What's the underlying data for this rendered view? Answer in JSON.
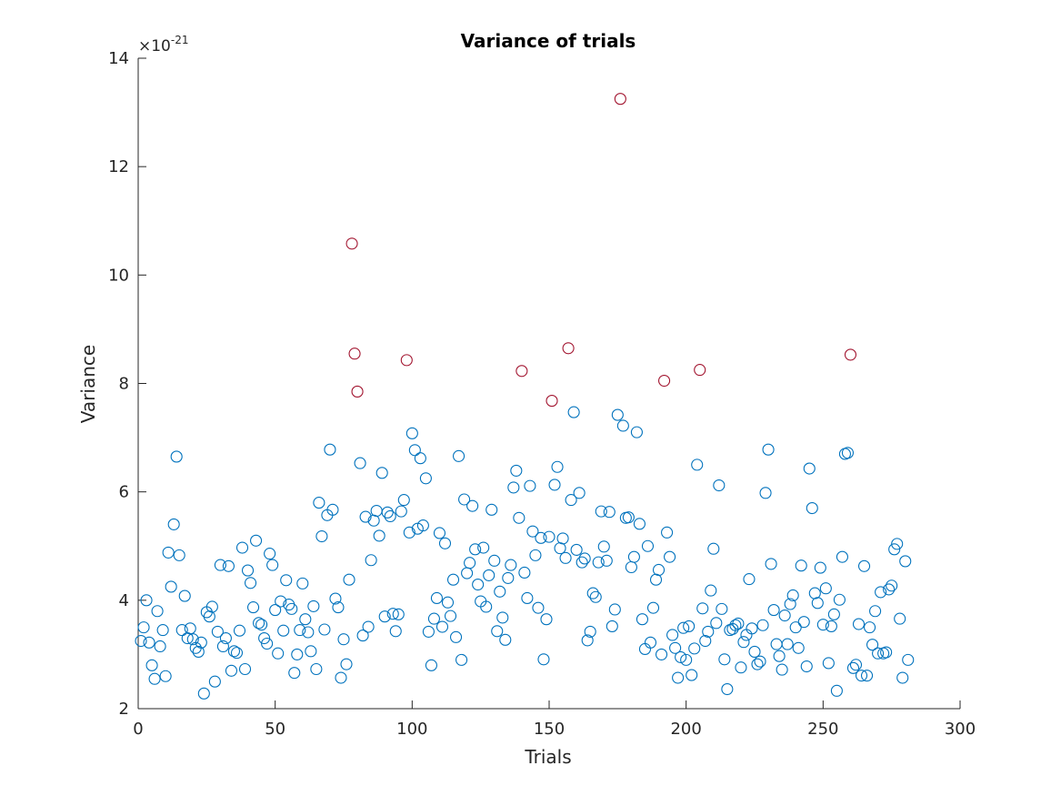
{
  "chart_data": {
    "type": "scatter",
    "title": "Variance of trials",
    "xlabel": "Trials",
    "ylabel": "Variance",
    "exponent_label": "×10",
    "exponent": "-21",
    "xlim": [
      0,
      300
    ],
    "ylim": [
      2,
      14
    ],
    "xticks": [
      0,
      50,
      100,
      150,
      200,
      250,
      300
    ],
    "yticks": [
      2,
      4,
      6,
      8,
      10,
      12,
      14
    ],
    "grid": false,
    "legend": "none",
    "series": [
      {
        "color": "#0072BD",
        "x": [
          1,
          2,
          3,
          4,
          5,
          6,
          7,
          8,
          9,
          10,
          11,
          12,
          13,
          14,
          15,
          16,
          17,
          18,
          19,
          20,
          21,
          22,
          23,
          24,
          25,
          26,
          27,
          28,
          29,
          30,
          31,
          32,
          33,
          34,
          35,
          36,
          37,
          38,
          39,
          40,
          41,
          42,
          43,
          44,
          45,
          46,
          47,
          48,
          49,
          50,
          51,
          52,
          53,
          54,
          55,
          56,
          57,
          58,
          59,
          60,
          61,
          62,
          63,
          64,
          65,
          66,
          67,
          68,
          69,
          70,
          71,
          72,
          73,
          74,
          75,
          76,
          77,
          81,
          82,
          83,
          84,
          85,
          86,
          87,
          88,
          89,
          90,
          91,
          92,
          93,
          94,
          95,
          96,
          97,
          99,
          100,
          101,
          102,
          103,
          104,
          105,
          106,
          107,
          108,
          109,
          110,
          111,
          112,
          113,
          114,
          115,
          116,
          117,
          118,
          119,
          120,
          121,
          122,
          123,
          124,
          125,
          126,
          127,
          128,
          129,
          130,
          131,
          132,
          133,
          134,
          135,
          136,
          137,
          138,
          139,
          141,
          142,
          143,
          144,
          145,
          146,
          147,
          148,
          149,
          150,
          152,
          153,
          154,
          155,
          156,
          158,
          159,
          160,
          161,
          162,
          163,
          164,
          165,
          166,
          167,
          168,
          169,
          170,
          171,
          172,
          173,
          174,
          175,
          177,
          178,
          179,
          180,
          181,
          182,
          183,
          184,
          185,
          186,
          187,
          188,
          189,
          190,
          191,
          193,
          194,
          195,
          196,
          197,
          198,
          199,
          200,
          201,
          202,
          203,
          204,
          206,
          207,
          208,
          209,
          210,
          211,
          212,
          213,
          214,
          215,
          216,
          217,
          218,
          219,
          220,
          221,
          222,
          223,
          224,
          225,
          226,
          227,
          228,
          229,
          230,
          231,
          232,
          233,
          234,
          235,
          236,
          237,
          238,
          239,
          240,
          241,
          242,
          243,
          244,
          245,
          246,
          247,
          248,
          249,
          250,
          251,
          252,
          253,
          254,
          255,
          256,
          257,
          258,
          259,
          261,
          262,
          263,
          264,
          265,
          266,
          267,
          268,
          269,
          270,
          271,
          272,
          273,
          274,
          275,
          276,
          277,
          278,
          279,
          280,
          281
        ],
        "y": [
          3.25,
          3.5,
          4.0,
          3.22,
          2.8,
          2.55,
          3.8,
          3.15,
          3.45,
          2.6,
          4.88,
          4.25,
          5.4,
          6.65,
          4.83,
          3.45,
          4.08,
          3.3,
          3.48,
          3.28,
          3.12,
          3.05,
          3.22,
          2.28,
          3.78,
          3.7,
          3.88,
          2.5,
          3.42,
          4.65,
          3.15,
          3.3,
          4.63,
          2.7,
          3.06,
          3.03,
          3.44,
          4.97,
          2.73,
          4.55,
          4.32,
          3.87,
          5.1,
          3.58,
          3.55,
          3.3,
          3.2,
          4.86,
          4.65,
          3.82,
          3.02,
          3.98,
          3.44,
          4.37,
          3.92,
          3.84,
          2.66,
          3.0,
          3.45,
          4.31,
          3.65,
          3.41,
          3.06,
          3.89,
          2.73,
          5.8,
          5.18,
          3.46,
          5.57,
          6.78,
          5.67,
          4.03,
          3.87,
          2.57,
          3.28,
          2.82,
          4.38,
          6.53,
          3.35,
          5.54,
          3.51,
          4.74,
          5.47,
          5.65,
          5.19,
          6.35,
          3.7,
          5.62,
          5.55,
          3.75,
          3.43,
          3.74,
          5.64,
          5.85,
          5.25,
          7.08,
          6.77,
          5.32,
          6.62,
          5.38,
          6.25,
          3.42,
          2.8,
          3.66,
          4.04,
          5.24,
          3.51,
          5.05,
          3.96,
          3.71,
          4.38,
          3.32,
          6.66,
          2.9,
          5.86,
          4.5,
          4.69,
          5.74,
          4.94,
          4.29,
          3.98,
          4.97,
          3.88,
          4.46,
          5.67,
          4.73,
          3.43,
          4.16,
          3.68,
          3.27,
          4.41,
          4.65,
          6.08,
          6.39,
          5.52,
          4.51,
          4.04,
          6.11,
          5.27,
          4.83,
          3.86,
          5.15,
          2.91,
          3.65,
          5.17,
          6.13,
          6.46,
          4.96,
          5.14,
          4.78,
          5.85,
          7.47,
          4.93,
          5.98,
          4.7,
          4.77,
          3.26,
          3.42,
          4.13,
          4.06,
          4.7,
          5.64,
          4.99,
          4.73,
          5.63,
          3.52,
          3.83,
          7.42,
          7.22,
          5.52,
          5.53,
          4.61,
          4.8,
          7.1,
          5.41,
          3.65,
          3.1,
          5.0,
          3.22,
          3.86,
          4.38,
          4.56,
          3.0,
          5.25,
          4.8,
          3.36,
          3.12,
          2.57,
          2.95,
          3.49,
          2.9,
          3.52,
          2.62,
          3.11,
          6.5,
          3.85,
          3.25,
          3.42,
          4.18,
          4.95,
          3.58,
          6.12,
          3.84,
          2.91,
          2.36,
          3.45,
          3.47,
          3.54,
          3.57,
          2.76,
          3.23,
          3.36,
          4.39,
          3.48,
          3.05,
          2.82,
          2.87,
          3.54,
          5.98,
          6.78,
          4.67,
          3.82,
          3.19,
          2.97,
          2.72,
          3.72,
          3.19,
          3.93,
          4.09,
          3.5,
          3.12,
          4.64,
          3.6,
          2.78,
          6.43,
          5.7,
          4.13,
          3.95,
          4.6,
          3.55,
          4.22,
          2.84,
          3.52,
          3.74,
          2.33,
          4.01,
          4.8,
          6.7,
          6.72,
          2.75,
          2.81,
          3.56,
          2.61,
          4.63,
          2.61,
          3.5,
          3.18,
          3.8,
          3.02,
          4.15,
          3.02,
          3.04,
          4.2,
          4.27,
          4.94,
          5.04,
          3.66,
          2.57,
          4.72,
          2.9
        ]
      },
      {
        "color": "#A2142F",
        "x": [
          78,
          79,
          80,
          98,
          140,
          151,
          157,
          176,
          192,
          205,
          260
        ],
        "y": [
          10.58,
          8.55,
          7.85,
          8.43,
          8.23,
          7.68,
          8.65,
          13.25,
          8.05,
          8.25,
          8.53
        ]
      }
    ]
  }
}
